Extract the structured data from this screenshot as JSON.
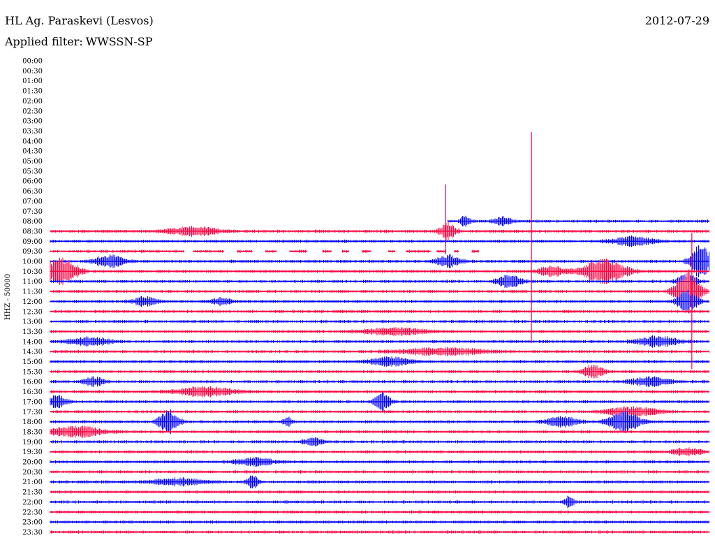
{
  "header": {
    "station": "HL Ag. Paraskevi (Lesvos)",
    "date": "2012-07-29",
    "filter_label": "Applied filter:",
    "filter_value": "WWSSN-SP"
  },
  "chart_data": {
    "type": "line",
    "ylabel": "HHZ - 50000",
    "colors": [
      "#0000ff",
      "#ff0040"
    ],
    "rows": [
      "00:00",
      "00:30",
      "01:00",
      "01:30",
      "02:00",
      "02:30",
      "03:00",
      "03:30",
      "04:00",
      "04:30",
      "05:00",
      "05:30",
      "06:00",
      "06:30",
      "07:00",
      "07:30",
      "08:00",
      "08:30",
      "09:00",
      "09:30",
      "10:00",
      "10:30",
      "11:00",
      "11:30",
      "12:00",
      "12:30",
      "13:00",
      "13:30",
      "14:00",
      "14:30",
      "15:00",
      "15:30",
      "16:00",
      "16:30",
      "17:00",
      "17:30",
      "18:00",
      "18:30",
      "19:00",
      "19:30",
      "20:00",
      "20:30",
      "21:00",
      "21:30",
      "22:00",
      "22:30",
      "23:00",
      "23:30"
    ],
    "x_range_minutes": [
      0,
      30
    ],
    "record_start": "08:00",
    "recorded": {
      "08:00": [
        [
          18.1,
          30
        ]
      ],
      "09:30": [
        [
          0,
          6.1
        ],
        [
          6.5,
          7.9
        ],
        [
          8.5,
          9.2
        ],
        [
          9.8,
          10.3
        ],
        [
          10.9,
          11.7
        ],
        [
          12.4,
          12.8
        ],
        [
          13.3,
          13.6
        ],
        [
          14.2,
          14.6
        ],
        [
          15.4,
          15.7
        ],
        [
          16.2,
          17.3
        ],
        [
          17.6,
          18.0
        ],
        [
          18.4,
          18.6
        ],
        [
          19.2,
          19.5
        ]
      ]
    },
    "events": [
      {
        "row": "08:00",
        "at_min": 18.9,
        "amp": 0.6,
        "dur_min": 0.5
      },
      {
        "row": "08:00",
        "at_min": 20.6,
        "amp": 0.5,
        "dur_min": 0.8
      },
      {
        "row": "08:30",
        "at_min": 6.5,
        "amp": 0.5,
        "dur_min": 2.5
      },
      {
        "row": "08:30",
        "at_min": 18.1,
        "amp": 0.9,
        "dur_min": 0.8
      },
      {
        "row": "09:00",
        "at_min": 26.5,
        "amp": 0.5,
        "dur_min": 2
      },
      {
        "row": "10:00",
        "at_min": 2.7,
        "amp": 0.7,
        "dur_min": 1.5
      },
      {
        "row": "10:00",
        "at_min": 18.1,
        "amp": 0.7,
        "dur_min": 1.2
      },
      {
        "row": "10:00",
        "at_min": 29.6,
        "amp": 2.0,
        "dur_min": 1
      },
      {
        "row": "10:30",
        "at_min": 0.5,
        "amp": 1.6,
        "dur_min": 1.6
      },
      {
        "row": "10:30",
        "at_min": 22.8,
        "amp": 0.6,
        "dur_min": 1.2
      },
      {
        "row": "10:30",
        "at_min": 25.2,
        "amp": 1.4,
        "dur_min": 2.2
      },
      {
        "row": "11:00",
        "at_min": 20.9,
        "amp": 0.7,
        "dur_min": 1.2
      },
      {
        "row": "11:00",
        "at_min": 29.0,
        "amp": 0.8,
        "dur_min": 1
      },
      {
        "row": "11:30",
        "at_min": 29.0,
        "amp": 2.5,
        "dur_min": 1.2
      },
      {
        "row": "12:00",
        "at_min": 4.3,
        "amp": 0.5,
        "dur_min": 1.2
      },
      {
        "row": "12:00",
        "at_min": 7.8,
        "amp": 0.4,
        "dur_min": 1
      },
      {
        "row": "12:00",
        "at_min": 29.0,
        "amp": 1.3,
        "dur_min": 1
      },
      {
        "row": "13:30",
        "at_min": 15.6,
        "amp": 0.4,
        "dur_min": 3
      },
      {
        "row": "14:00",
        "at_min": 1.8,
        "amp": 0.5,
        "dur_min": 2
      },
      {
        "row": "14:00",
        "at_min": 27.6,
        "amp": 0.6,
        "dur_min": 2
      },
      {
        "row": "14:30",
        "at_min": 17.8,
        "amp": 0.4,
        "dur_min": 4
      },
      {
        "row": "15:00",
        "at_min": 15.5,
        "amp": 0.5,
        "dur_min": 2
      },
      {
        "row": "15:30",
        "at_min": 24.7,
        "amp": 0.8,
        "dur_min": 1
      },
      {
        "row": "16:00",
        "at_min": 2.0,
        "amp": 0.5,
        "dur_min": 1
      },
      {
        "row": "16:00",
        "at_min": 27.3,
        "amp": 0.5,
        "dur_min": 2
      },
      {
        "row": "16:30",
        "at_min": 7.0,
        "amp": 0.5,
        "dur_min": 3
      },
      {
        "row": "17:00",
        "at_min": 0.3,
        "amp": 0.7,
        "dur_min": 1
      },
      {
        "row": "17:00",
        "at_min": 15.1,
        "amp": 1.0,
        "dur_min": 0.8
      },
      {
        "row": "17:30",
        "at_min": 26.5,
        "amp": 0.5,
        "dur_min": 2.5
      },
      {
        "row": "18:00",
        "at_min": 5.4,
        "amp": 1.4,
        "dur_min": 1
      },
      {
        "row": "18:00",
        "at_min": 10.8,
        "amp": 0.5,
        "dur_min": 0.5
      },
      {
        "row": "18:00",
        "at_min": 23.3,
        "amp": 0.6,
        "dur_min": 1.5
      },
      {
        "row": "18:00",
        "at_min": 26.1,
        "amp": 1.2,
        "dur_min": 1.5
      },
      {
        "row": "18:30",
        "at_min": 1.2,
        "amp": 0.6,
        "dur_min": 2.5
      },
      {
        "row": "19:00",
        "at_min": 12.0,
        "amp": 0.4,
        "dur_min": 1
      },
      {
        "row": "19:30",
        "at_min": 29.0,
        "amp": 0.4,
        "dur_min": 1.5
      },
      {
        "row": "20:00",
        "at_min": 9.3,
        "amp": 0.4,
        "dur_min": 2
      },
      {
        "row": "21:00",
        "at_min": 5.8,
        "amp": 0.4,
        "dur_min": 2.5
      },
      {
        "row": "21:00",
        "at_min": 9.2,
        "amp": 0.9,
        "dur_min": 0.5
      },
      {
        "row": "22:00",
        "at_min": 23.6,
        "amp": 0.6,
        "dur_min": 0.5
      }
    ],
    "spikes": [
      {
        "row": "08:30",
        "at_min": 18.0,
        "up_px": 67,
        "down_px": 33
      },
      {
        "row": "08:30",
        "at_min": 21.9,
        "up_px": 142,
        "down_px": 160
      },
      {
        "row": "10:30",
        "at_min": 29.2,
        "up_px": 55,
        "down_px": 140
      }
    ]
  }
}
